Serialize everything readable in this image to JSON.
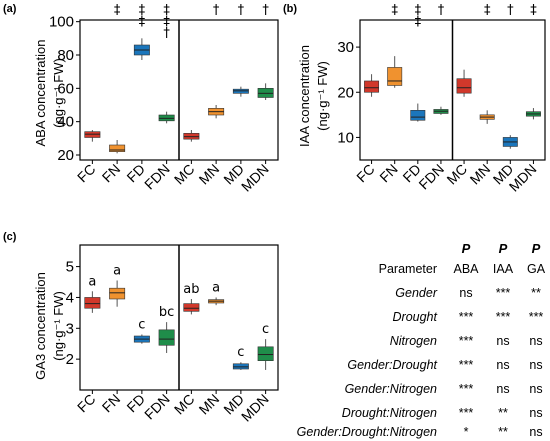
{
  "colors": {
    "F": "#d1382b",
    "FN": "#f0922f",
    "D": "#1b76bc",
    "DN": "#1f8d4a"
  },
  "chart_data": [
    {
      "type": "box",
      "panel": "(a)",
      "ylabel_line1": "ABA concentration",
      "ylabel_line2": "(ng·g⁻¹ FW)",
      "ylim": [
        17,
        101
      ],
      "yticks": [
        20,
        40,
        60,
        80,
        100
      ],
      "categories": [
        "FC",
        "FN",
        "FD",
        "FDN",
        "MC",
        "MN",
        "MD",
        "MDN"
      ],
      "color_keys": [
        "F",
        "FN",
        "D",
        "DN",
        "F",
        "FN",
        "D",
        "DN"
      ],
      "boxes": [
        {
          "min": 28,
          "q1": 30.5,
          "median": 32.5,
          "q3": 34,
          "max": 35
        },
        {
          "min": 21,
          "q1": 22,
          "median": 23,
          "q3": 26,
          "max": 29
        },
        {
          "min": 77,
          "q1": 80,
          "median": 83,
          "q3": 86,
          "max": 90
        },
        {
          "min": 39,
          "q1": 40.5,
          "median": 42,
          "q3": 44,
          "max": 46
        },
        {
          "min": 28,
          "q1": 29.5,
          "median": 31,
          "q3": 33,
          "max": 35
        },
        {
          "min": 42,
          "q1": 44,
          "median": 46,
          "q3": 48,
          "max": 50
        },
        {
          "min": 55,
          "q1": 57,
          "median": 58.5,
          "q3": 59.5,
          "max": 61
        },
        {
          "min": 53,
          "q1": 54.5,
          "median": 57,
          "q3": 60,
          "max": 63
        }
      ],
      "annotations": [
        {
          "category": "FN",
          "symbols": [
            "‡"
          ]
        },
        {
          "category": "FD",
          "symbols": [
            "‡",
            "‡"
          ]
        },
        {
          "category": "FDN",
          "symbols": [
            "‡",
            "‡",
            "†"
          ]
        },
        {
          "category": "MN",
          "symbols": [
            "†"
          ]
        },
        {
          "category": "MD",
          "symbols": [
            "†"
          ]
        },
        {
          "category": "MDN",
          "symbols": [
            "†"
          ]
        }
      ],
      "divider_after": "FDN"
    },
    {
      "type": "box",
      "panel": "(b)",
      "ylabel_line1": "IAA concentration",
      "ylabel_line2": "(ng·g⁻¹ FW)",
      "ylim": [
        5,
        36
      ],
      "yticks": [
        10,
        20,
        30
      ],
      "categories": [
        "FC",
        "FN",
        "FD",
        "FDN",
        "MC",
        "MN",
        "MD",
        "MDN"
      ],
      "color_keys": [
        "F",
        "FN",
        "D",
        "DN",
        "F",
        "FN",
        "D",
        "DN"
      ],
      "boxes": [
        {
          "min": 19,
          "q1": 20,
          "median": 21,
          "q3": 22.5,
          "max": 24
        },
        {
          "min": 21,
          "q1": 21.5,
          "median": 22.5,
          "q3": 25.5,
          "max": 28
        },
        {
          "min": 13.5,
          "q1": 13.8,
          "median": 14.5,
          "q3": 16,
          "max": 17.5
        },
        {
          "min": 15,
          "q1": 15.3,
          "median": 15.8,
          "q3": 16.2,
          "max": 16.8
        },
        {
          "min": 19,
          "q1": 19.8,
          "median": 21,
          "q3": 23,
          "max": 25
        },
        {
          "min": 13,
          "q1": 14,
          "median": 14.5,
          "q3": 15,
          "max": 16
        },
        {
          "min": 7.5,
          "q1": 8,
          "median": 9,
          "q3": 10,
          "max": 10.5
        },
        {
          "min": 14,
          "q1": 14.7,
          "median": 15.2,
          "q3": 15.7,
          "max": 16.5
        }
      ],
      "annotations": [
        {
          "category": "FN",
          "symbols": [
            "‡"
          ]
        },
        {
          "category": "FD",
          "symbols": [
            "‡",
            "‡"
          ]
        },
        {
          "category": "FDN",
          "symbols": [
            "†"
          ]
        },
        {
          "category": "MN",
          "symbols": [
            "‡"
          ]
        },
        {
          "category": "MD",
          "symbols": [
            "†"
          ]
        },
        {
          "category": "MDN",
          "symbols": [
            "‡"
          ]
        }
      ],
      "divider_after": "FDN"
    },
    {
      "type": "box",
      "panel": "(c)",
      "ylabel_line1": "GA3 concentration",
      "ylabel_line2": "(ng·g⁻¹ FW)",
      "ylim": [
        1,
        5.7
      ],
      "yticks": [
        2,
        3,
        4,
        5
      ],
      "categories": [
        "FC",
        "FN",
        "FD",
        "FDN",
        "MC",
        "MN",
        "MD",
        "MDN"
      ],
      "color_keys": [
        "F",
        "FN",
        "D",
        "DN",
        "F",
        "FN",
        "D",
        "DN"
      ],
      "boxes": [
        {
          "min": 3.5,
          "q1": 3.65,
          "median": 3.8,
          "q3": 4.0,
          "max": 4.2
        },
        {
          "min": 3.7,
          "q1": 3.95,
          "median": 4.15,
          "q3": 4.3,
          "max": 4.55
        },
        {
          "min": 2.5,
          "q1": 2.55,
          "median": 2.65,
          "q3": 2.75,
          "max": 2.8
        },
        {
          "min": 2.2,
          "q1": 2.45,
          "median": 2.65,
          "q3": 2.95,
          "max": 3.2
        },
        {
          "min": 3.45,
          "q1": 3.55,
          "median": 3.65,
          "q3": 3.8,
          "max": 3.95
        },
        {
          "min": 3.75,
          "q1": 3.82,
          "median": 3.88,
          "q3": 3.93,
          "max": 4.0
        },
        {
          "min": 1.65,
          "q1": 1.68,
          "median": 1.75,
          "q3": 1.85,
          "max": 1.9
        },
        {
          "min": 1.65,
          "q1": 1.95,
          "median": 2.15,
          "q3": 2.4,
          "max": 2.65
        }
      ],
      "letters": [
        "a",
        "a",
        "c",
        "bc",
        "ab",
        "a",
        "c",
        "c"
      ],
      "divider_after": "FDN"
    }
  ],
  "table": {
    "header_bold": [
      "P",
      "P",
      "P"
    ],
    "header_cols": [
      "Parameter",
      "ABA",
      "IAA",
      "GA"
    ],
    "rows": [
      {
        "param": "Gender",
        "aba": "ns",
        "iaa": "***",
        "ga": "**"
      },
      {
        "param": "Drought",
        "aba": "***",
        "iaa": "***",
        "ga": "***"
      },
      {
        "param": "Nitrogen",
        "aba": "***",
        "iaa": "ns",
        "ga": "ns"
      },
      {
        "param": "Gender:Drought",
        "aba": "***",
        "iaa": "ns",
        "ga": "ns"
      },
      {
        "param": "Gender:Nitrogen",
        "aba": "***",
        "iaa": "ns",
        "ga": "ns"
      },
      {
        "param": "Drought:Nitrogen",
        "aba": "***",
        "iaa": "**",
        "ga": "ns"
      },
      {
        "param": "Gender:Drought:Nitrogen",
        "aba": "*",
        "iaa": "**",
        "ga": "ns"
      }
    ]
  }
}
